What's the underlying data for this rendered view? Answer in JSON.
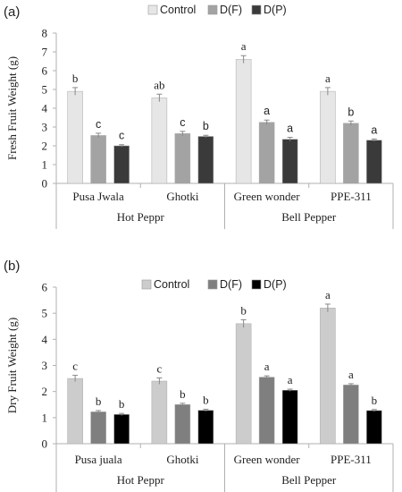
{
  "chart_data": [
    {
      "type": "bar",
      "panel_label": "(a)",
      "ylabel": "Fresh Fruit Weight (g)",
      "ylim": [
        0,
        8
      ],
      "yticks": [
        "0",
        "1",
        "2",
        "3",
        "4",
        "5",
        "6",
        "7",
        "8"
      ],
      "categories": [
        "Pusa Jwala",
        "Ghotki",
        "Green wonder",
        "PPE-311"
      ],
      "groups": [
        {
          "label": "Hot Peppr",
          "span": [
            0,
            1
          ]
        },
        {
          "label": "Bell Pepper",
          "span": [
            2,
            3
          ]
        }
      ],
      "legend_position": "top",
      "series": [
        {
          "name": "Control",
          "color": "#e6e6e6",
          "values": [
            4.9,
            4.55,
            6.6,
            4.9
          ],
          "errors": [
            0.2,
            0.2,
            0.2,
            0.2
          ],
          "letters": [
            "b",
            "ab",
            "a",
            "a"
          ]
        },
        {
          "name": "D(F)",
          "color": "#a3a3a3",
          "values": [
            2.55,
            2.65,
            3.25,
            3.2
          ],
          "errors": [
            0.12,
            0.12,
            0.12,
            0.12
          ],
          "letters": [
            "c",
            "c",
            "a",
            "b"
          ]
        },
        {
          "name": "D(P)",
          "color": "#3a3a3a",
          "values": [
            2.0,
            2.5,
            2.35,
            2.3
          ],
          "errors": [
            0.06,
            0.06,
            0.1,
            0.06
          ],
          "letters": [
            "c",
            "b",
            "a",
            "a"
          ]
        }
      ]
    },
    {
      "type": "bar",
      "panel_label": "(b)",
      "ylabel": "Dry Fruit Weight (g)",
      "ylim": [
        0,
        6
      ],
      "yticks": [
        "0",
        "1",
        "2",
        "3",
        "4",
        "5",
        "6"
      ],
      "categories": [
        "Pusa juala",
        "Ghotki",
        "Green wonder",
        "PPE-311"
      ],
      "groups": [
        {
          "label": "Hot Peppr",
          "span": [
            0,
            1
          ]
        },
        {
          "label": "Bell Pepper",
          "span": [
            2,
            3
          ]
        }
      ],
      "legend_position": "top",
      "series": [
        {
          "name": "Control",
          "color": "#cccccc",
          "values": [
            2.5,
            2.4,
            4.6,
            5.2
          ],
          "errors": [
            0.12,
            0.12,
            0.15,
            0.15
          ],
          "letters": [
            "c",
            "c",
            "b",
            "a"
          ]
        },
        {
          "name": "D(F)",
          "color": "#7f7f7f",
          "values": [
            1.22,
            1.5,
            2.55,
            2.25
          ],
          "errors": [
            0.05,
            0.05,
            0.05,
            0.05
          ],
          "letters": [
            "b",
            "b",
            "a",
            "a"
          ]
        },
        {
          "name": "D(P)",
          "color": "#000000",
          "values": [
            1.12,
            1.28,
            2.05,
            1.27
          ],
          "errors": [
            0.04,
            0.04,
            0.04,
            0.04
          ],
          "letters": [
            "b",
            "b",
            "a",
            "b"
          ]
        }
      ]
    }
  ]
}
